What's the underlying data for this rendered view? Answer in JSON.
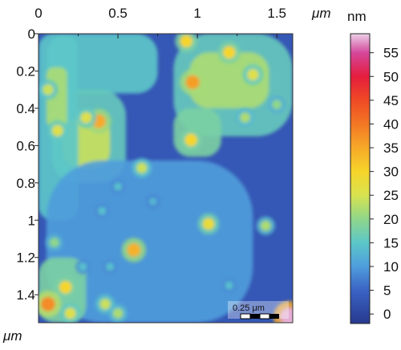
{
  "chart_data": {
    "type": "heatmap",
    "title": "",
    "x_axis": {
      "unit_label": "μm",
      "ticks": [
        0,
        0.5,
        1,
        1.5
      ],
      "tick_labels": [
        "0",
        "0.5",
        "1",
        "1.5"
      ],
      "range": [
        0,
        1.6
      ]
    },
    "y_axis": {
      "unit_label": "μm",
      "ticks": [
        0,
        0.2,
        0.4,
        0.6,
        0.8,
        1,
        1.2,
        1.4
      ],
      "tick_labels": [
        "0",
        "0.2",
        "0.4",
        "0.6",
        "0.8",
        "1",
        "1.2",
        "1.4"
      ],
      "range": [
        0,
        1.55
      ],
      "inverted": true
    },
    "colorbar": {
      "unit_label": "nm",
      "ticks": [
        0,
        5,
        10,
        15,
        20,
        25,
        30,
        35,
        40,
        45,
        50,
        55
      ],
      "tick_labels": [
        "0",
        "5",
        "10",
        "15",
        "20",
        "25",
        "30",
        "35",
        "40",
        "45",
        "50",
        "55"
      ],
      "range": [
        -2,
        59
      ],
      "colormap": [
        {
          "value": -2,
          "color": "#273a8f"
        },
        {
          "value": 5,
          "color": "#3b63c4"
        },
        {
          "value": 10,
          "color": "#4f9ddc"
        },
        {
          "value": 15,
          "color": "#5cc7c9"
        },
        {
          "value": 20,
          "color": "#8fd68a"
        },
        {
          "value": 25,
          "color": "#d8e24f"
        },
        {
          "value": 30,
          "color": "#f6d52a"
        },
        {
          "value": 35,
          "color": "#f6a829"
        },
        {
          "value": 40,
          "color": "#f27724"
        },
        {
          "value": 45,
          "color": "#ef4a25"
        },
        {
          "value": 50,
          "color": "#e41d3d"
        },
        {
          "value": 55,
          "color": "#d5479b"
        },
        {
          "value": 59,
          "color": "#ead1e8"
        }
      ]
    },
    "background_height_nm": 3,
    "regions": [
      {
        "x": [
          0.05,
          0.75
        ],
        "y": [
          0.0,
          0.32
        ],
        "height_nm": 15
      },
      {
        "x": [
          0.08,
          0.55
        ],
        "y": [
          0.3,
          0.8
        ],
        "height_nm": 16
      },
      {
        "x": [
          0.15,
          0.45
        ],
        "y": [
          0.45,
          0.72
        ],
        "height_nm": 24
      },
      {
        "x": [
          0.0,
          0.25
        ],
        "y": [
          0.0,
          1.0
        ],
        "height_nm": 15
      },
      {
        "x": [
          0.05,
          0.18
        ],
        "y": [
          0.18,
          0.5
        ],
        "height_nm": 22
      },
      {
        "x": [
          0.85,
          1.6
        ],
        "y": [
          0.0,
          0.55
        ],
        "height_nm": 16
      },
      {
        "x": [
          0.95,
          1.45
        ],
        "y": [
          0.1,
          0.4
        ],
        "height_nm": 22
      },
      {
        "x": [
          0.85,
          1.15
        ],
        "y": [
          0.4,
          0.66
        ],
        "height_nm": 18
      },
      {
        "x": [
          0.05,
          1.35
        ],
        "y": [
          0.68,
          1.55
        ],
        "height_nm": 10
      },
      {
        "x": [
          0.0,
          0.3
        ],
        "y": [
          1.2,
          1.55
        ],
        "height_nm": 18
      }
    ],
    "features": [
      {
        "x": 0.38,
        "y": 0.47,
        "height_nm": 35
      },
      {
        "x": 0.3,
        "y": 0.45,
        "height_nm": 26
      },
      {
        "x": 0.12,
        "y": 0.52,
        "height_nm": 26
      },
      {
        "x": 0.06,
        "y": 0.3,
        "height_nm": 24
      },
      {
        "x": 0.93,
        "y": 0.04,
        "height_nm": 30
      },
      {
        "x": 0.97,
        "y": 0.26,
        "height_nm": 36
      },
      {
        "x": 1.2,
        "y": 0.1,
        "height_nm": 30
      },
      {
        "x": 1.35,
        "y": 0.22,
        "height_nm": 26
      },
      {
        "x": 0.96,
        "y": 0.57,
        "height_nm": 30
      },
      {
        "x": 1.3,
        "y": 0.45,
        "height_nm": 22
      },
      {
        "x": 1.5,
        "y": 0.38,
        "height_nm": 20
      },
      {
        "x": 0.65,
        "y": 0.72,
        "height_nm": 24
      },
      {
        "x": 0.5,
        "y": 0.82,
        "height_nm": 14
      },
      {
        "x": 0.72,
        "y": 0.9,
        "height_nm": 13
      },
      {
        "x": 1.07,
        "y": 1.02,
        "height_nm": 28
      },
      {
        "x": 1.43,
        "y": 1.03,
        "height_nm": 22
      },
      {
        "x": 0.4,
        "y": 0.95,
        "height_nm": 14
      },
      {
        "x": 0.6,
        "y": 1.16,
        "height_nm": 34
      },
      {
        "x": 0.45,
        "y": 1.25,
        "height_nm": 14
      },
      {
        "x": 0.1,
        "y": 1.12,
        "height_nm": 20
      },
      {
        "x": 0.06,
        "y": 1.45,
        "height_nm": 38
      },
      {
        "x": 0.17,
        "y": 1.36,
        "height_nm": 30
      },
      {
        "x": 0.2,
        "y": 1.5,
        "height_nm": 26
      },
      {
        "x": 0.42,
        "y": 1.45,
        "height_nm": 24
      },
      {
        "x": 0.5,
        "y": 1.5,
        "height_nm": 22
      },
      {
        "x": 0.28,
        "y": 1.25,
        "height_nm": 14
      },
      {
        "x": 1.2,
        "y": 1.35,
        "height_nm": 14
      },
      {
        "x": 1.58,
        "y": 1.52,
        "height_nm": 58
      }
    ],
    "scale_bar": {
      "label": "0.25 μm",
      "length_um": 0.25,
      "position": "bottom-right"
    }
  }
}
